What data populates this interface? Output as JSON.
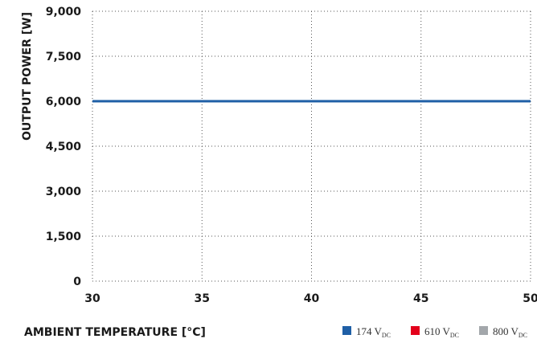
{
  "chart_data": {
    "type": "line",
    "xlabel": "AMBIENT TEMPERATURE [°C]",
    "ylabel": "OUTPUT POWER [W]",
    "xlim": [
      30,
      50
    ],
    "ylim": [
      0,
      9000
    ],
    "x_ticks": [
      30,
      35,
      40,
      45,
      50
    ],
    "x_tick_labels": [
      "30",
      "35",
      "40",
      "45",
      "50"
    ],
    "y_ticks": [
      0,
      1500,
      3000,
      4500,
      6000,
      7500,
      9000
    ],
    "y_tick_labels": [
      "0",
      "1,500",
      "3,000",
      "4,500",
      "6,000",
      "7,500",
      "9,000"
    ],
    "grid": true,
    "legend_position": "bottom-right",
    "series": [
      {
        "name": "174",
        "unit": "V",
        "unit_sub": "DC",
        "color": "#1f5fa6",
        "x": [
          30,
          50
        ],
        "y": [
          6000,
          6000
        ]
      },
      {
        "name": "610",
        "unit": "V",
        "unit_sub": "DC",
        "color": "#e3001b",
        "x": [
          30,
          50
        ],
        "y": [
          6000,
          6000
        ]
      },
      {
        "name": "800",
        "unit": "V",
        "unit_sub": "DC",
        "color": "#a3a7ab",
        "x": [
          30,
          50
        ],
        "y": [
          6000,
          6000
        ]
      }
    ]
  }
}
